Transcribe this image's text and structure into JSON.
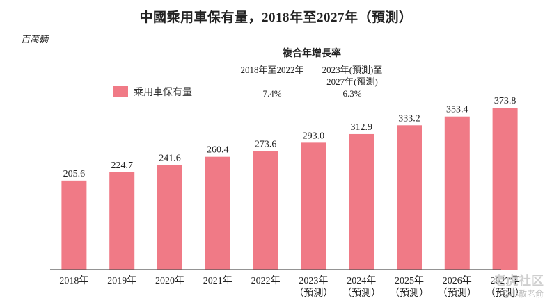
{
  "title": "中國乘用車保有量，2018年至2027年（預測）",
  "unit": "百萬輛",
  "cagr": {
    "heading": "複合年增長率",
    "columns": [
      {
        "period": "2018年至2022年",
        "rate": "7.4%"
      },
      {
        "period": "2023年(預測)至\n2027年(預測)",
        "rate": "6.3%"
      }
    ]
  },
  "legend": {
    "label": "乘用車保有量",
    "color": "#f07a86"
  },
  "watermark": {
    "main": "老虎社区",
    "sub": "@小散老俞"
  },
  "chart_data": {
    "type": "bar",
    "title": "中國乘用車保有量，2018年至2027年（預測）",
    "ylabel": "百萬輛",
    "categories": [
      {
        "year": "2018年",
        "note": ""
      },
      {
        "year": "2019年",
        "note": ""
      },
      {
        "year": "2020年",
        "note": ""
      },
      {
        "year": "2021年",
        "note": ""
      },
      {
        "year": "2022年",
        "note": ""
      },
      {
        "year": "2023年",
        "note": "（預測）"
      },
      {
        "year": "2024年",
        "note": "（預測）"
      },
      {
        "year": "2025年",
        "note": "（預測）"
      },
      {
        "year": "2026年",
        "note": "（預測）"
      },
      {
        "year": "2027年",
        "note": "（預測）"
      }
    ],
    "series": [
      {
        "name": "乘用車保有量",
        "color": "#f07a86",
        "values": [
          205.6,
          224.7,
          241.6,
          260.4,
          273.6,
          293.0,
          312.9,
          333.2,
          353.4,
          373.8
        ],
        "labels": [
          "205.6",
          "224.7",
          "241.6",
          "260.4",
          "273.6",
          "293.0",
          "312.9",
          "333.2",
          "353.4",
          "373.8"
        ]
      }
    ],
    "ylim": [
      0,
      400
    ],
    "grid": false,
    "legend_position": "top-left"
  }
}
